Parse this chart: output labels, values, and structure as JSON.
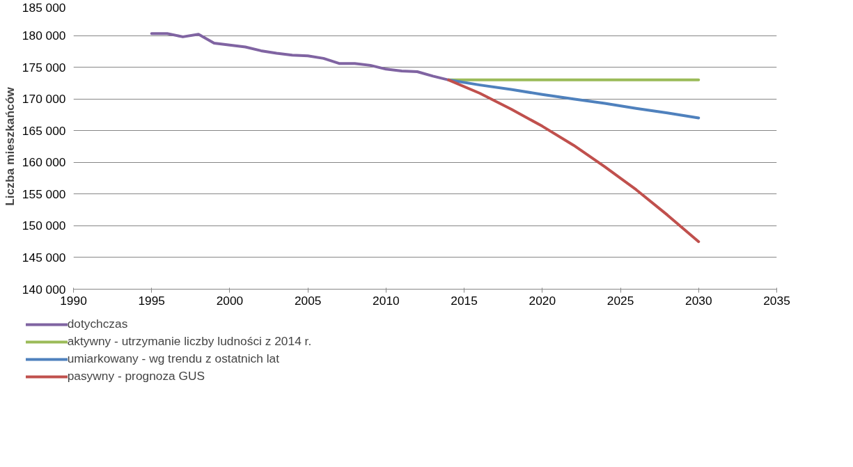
{
  "chart_data": {
    "type": "line",
    "ylabel": "Liczba mieszkańców",
    "xlim": [
      1990,
      2035
    ],
    "xticks": [
      1990,
      1995,
      2000,
      2005,
      2010,
      2015,
      2020,
      2025,
      2030,
      2035
    ],
    "ylim": [
      140000,
      185000
    ],
    "yticks": [
      {
        "value": 140000,
        "label": "140 000"
      },
      {
        "value": 145000,
        "label": "145 000"
      },
      {
        "value": 150000,
        "label": "150 000"
      },
      {
        "value": 155000,
        "label": "155 000"
      },
      {
        "value": 160000,
        "label": "160 000"
      },
      {
        "value": 165000,
        "label": "165 000"
      },
      {
        "value": 170000,
        "label": "170 000"
      },
      {
        "value": 175000,
        "label": "175 000"
      },
      {
        "value": 180000,
        "label": "180 000"
      },
      {
        "value": 185000,
        "label": "185 000"
      }
    ],
    "grid": "y",
    "legend": "bottom",
    "marker": "none",
    "line_style": "solid",
    "series": [
      {
        "name": "dotychczas",
        "color": "#8064a2",
        "x": [
          1995,
          1996,
          1997,
          1998,
          1999,
          2000,
          2001,
          2002,
          2003,
          2004,
          2005,
          2006,
          2007,
          2008,
          2009,
          2010,
          2011,
          2012,
          2013,
          2014
        ],
        "values": [
          180300,
          180300,
          179800,
          180200,
          178800,
          178500,
          178200,
          177600,
          177200,
          176900,
          176800,
          176400,
          175600,
          175600,
          175300,
          174700,
          174400,
          174300,
          173600,
          173000
        ]
      },
      {
        "name": "aktywny - utrzymanie liczby ludności z 2014 r.",
        "color": "#9bbb59",
        "x": [
          2014,
          2030
        ],
        "values": [
          173000,
          173000
        ]
      },
      {
        "name": "umiarkowany - wg trendu z ostatnich lat",
        "color": "#4f81bd",
        "x": [
          2014,
          2016,
          2018,
          2020,
          2022,
          2024,
          2026,
          2028,
          2030
        ],
        "values": [
          173000,
          172200,
          171500,
          170700,
          170000,
          169300,
          168500,
          167800,
          167000
        ]
      },
      {
        "name": "pasywny - prognoza GUS",
        "color": "#c0504d",
        "x": [
          2014,
          2016,
          2018,
          2020,
          2022,
          2024,
          2026,
          2028,
          2030
        ],
        "values": [
          173000,
          170900,
          168400,
          165700,
          162700,
          159300,
          155700,
          151700,
          147500
        ]
      }
    ]
  }
}
